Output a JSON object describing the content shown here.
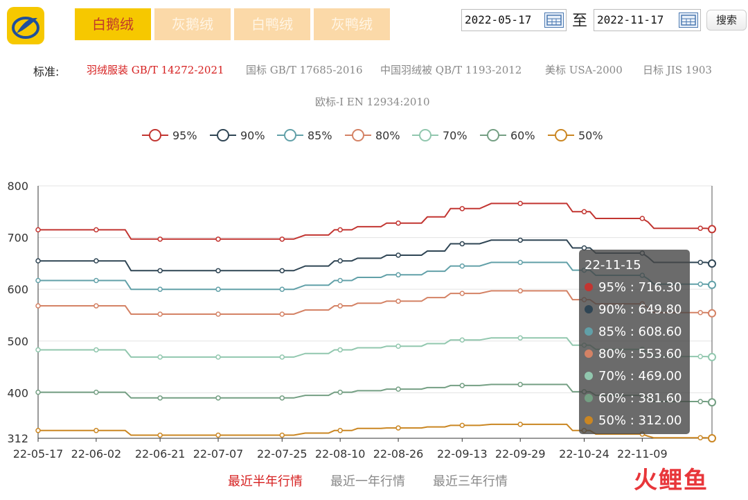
{
  "tabs": [
    {
      "label": "白鹅绒",
      "active": true
    },
    {
      "label": "灰鹅绒",
      "active": false
    },
    {
      "label": "白鸭绒",
      "active": false
    },
    {
      "label": "灰鸭绒",
      "active": false
    }
  ],
  "date_range": {
    "start": "2022-05-17",
    "to_label": "至",
    "end": "2022-11-17",
    "search_label": "搜索"
  },
  "standards": {
    "label": "标准:",
    "items": [
      {
        "label": "羽绒服装 GB/T 14272-2021",
        "active": true
      },
      {
        "label": "国标 GB/T 17685-2016",
        "active": false
      },
      {
        "label": "中国羽绒被 QB/T 1193-2012",
        "active": false
      },
      {
        "label": "美标 USA-2000",
        "active": false
      },
      {
        "label": "日标 JIS 1903",
        "active": false
      },
      {
        "label": "欧标-I EN 12934:2010",
        "active": false
      }
    ]
  },
  "period_links": [
    {
      "label": "最近半年行情",
      "active": true
    },
    {
      "label": "最近一年行情",
      "active": false
    },
    {
      "label": "最近三年行情",
      "active": false
    }
  ],
  "watermark": "火鲤鱼",
  "chart_data": {
    "type": "line",
    "ylim": [
      312,
      800
    ],
    "y_ticks": [
      312,
      400,
      500,
      600,
      700,
      800
    ],
    "x_tick_labels": [
      "22-05-17",
      "22-06-02",
      "22-06-21",
      "22-07-07",
      "22-07-25",
      "22-08-10",
      "22-08-26",
      "22-09-13",
      "22-09-29",
      "22-10-24",
      "22-11-09"
    ],
    "legend_position": "top-center",
    "x_count": 101,
    "series": [
      {
        "name": "95%",
        "color": "#c23531",
        "steps": [
          [
            0,
            715
          ],
          [
            15,
            715
          ],
          [
            16,
            697
          ],
          [
            44,
            697
          ],
          [
            46,
            705
          ],
          [
            50,
            705
          ],
          [
            51,
            715
          ],
          [
            54,
            715
          ],
          [
            55,
            721
          ],
          [
            59,
            721
          ],
          [
            60,
            728
          ],
          [
            66,
            728
          ],
          [
            67,
            740
          ],
          [
            70,
            740
          ],
          [
            71,
            756
          ],
          [
            76,
            756
          ],
          [
            78,
            766
          ],
          [
            91,
            766
          ],
          [
            92,
            750
          ],
          [
            95,
            750
          ],
          [
            96,
            737
          ],
          [
            104,
            737
          ],
          [
            105,
            730
          ],
          [
            106,
            718
          ],
          [
            115,
            718
          ],
          [
            116,
            716.3
          ]
        ]
      },
      {
        "name": "90%",
        "color": "#2f4554",
        "steps": [
          [
            0,
            655
          ],
          [
            15,
            655
          ],
          [
            16,
            636
          ],
          [
            44,
            636
          ],
          [
            46,
            645
          ],
          [
            50,
            645
          ],
          [
            51,
            655
          ],
          [
            54,
            655
          ],
          [
            55,
            660
          ],
          [
            59,
            660
          ],
          [
            60,
            666
          ],
          [
            66,
            666
          ],
          [
            67,
            674
          ],
          [
            70,
            674
          ],
          [
            71,
            688
          ],
          [
            76,
            688
          ],
          [
            78,
            695
          ],
          [
            91,
            695
          ],
          [
            92,
            680
          ],
          [
            95,
            680
          ],
          [
            96,
            670
          ],
          [
            104,
            670
          ],
          [
            105,
            662
          ],
          [
            106,
            652
          ],
          [
            115,
            652
          ],
          [
            116,
            649.8
          ]
        ]
      },
      {
        "name": "85%",
        "color": "#61a0a8",
        "steps": [
          [
            0,
            617
          ],
          [
            15,
            617
          ],
          [
            16,
            600
          ],
          [
            44,
            600
          ],
          [
            46,
            608
          ],
          [
            50,
            608
          ],
          [
            51,
            617
          ],
          [
            54,
            617
          ],
          [
            55,
            623
          ],
          [
            59,
            623
          ],
          [
            60,
            628
          ],
          [
            66,
            628
          ],
          [
            67,
            635
          ],
          [
            70,
            635
          ],
          [
            71,
            645
          ],
          [
            76,
            645
          ],
          [
            78,
            652
          ],
          [
            91,
            652
          ],
          [
            92,
            637
          ],
          [
            95,
            637
          ],
          [
            96,
            627
          ],
          [
            104,
            627
          ],
          [
            105,
            620
          ],
          [
            106,
            610
          ],
          [
            115,
            610
          ],
          [
            116,
            608.6
          ]
        ]
      },
      {
        "name": "80%",
        "color": "#d48265",
        "steps": [
          [
            0,
            568
          ],
          [
            15,
            568
          ],
          [
            16,
            552
          ],
          [
            44,
            552
          ],
          [
            46,
            560
          ],
          [
            50,
            560
          ],
          [
            51,
            568
          ],
          [
            54,
            568
          ],
          [
            55,
            573
          ],
          [
            59,
            573
          ],
          [
            60,
            577
          ],
          [
            66,
            577
          ],
          [
            67,
            584
          ],
          [
            70,
            584
          ],
          [
            71,
            592
          ],
          [
            76,
            592
          ],
          [
            78,
            597
          ],
          [
            91,
            597
          ],
          [
            92,
            580
          ],
          [
            95,
            580
          ],
          [
            96,
            572
          ],
          [
            104,
            572
          ],
          [
            105,
            565
          ],
          [
            106,
            555
          ],
          [
            115,
            555
          ],
          [
            116,
            553.6
          ]
        ]
      },
      {
        "name": "70%",
        "color": "#91c7ae",
        "steps": [
          [
            0,
            483
          ],
          [
            15,
            483
          ],
          [
            16,
            469
          ],
          [
            44,
            469
          ],
          [
            46,
            476
          ],
          [
            50,
            476
          ],
          [
            51,
            483
          ],
          [
            54,
            483
          ],
          [
            55,
            487
          ],
          [
            59,
            487
          ],
          [
            60,
            490
          ],
          [
            66,
            490
          ],
          [
            67,
            495
          ],
          [
            70,
            495
          ],
          [
            71,
            502
          ],
          [
            76,
            502
          ],
          [
            78,
            506
          ],
          [
            91,
            506
          ],
          [
            92,
            492
          ],
          [
            95,
            492
          ],
          [
            96,
            484
          ],
          [
            104,
            484
          ],
          [
            105,
            478
          ],
          [
            106,
            470
          ],
          [
            115,
            470
          ],
          [
            116,
            469
          ]
        ]
      },
      {
        "name": "60%",
        "color": "#749f83",
        "steps": [
          [
            0,
            401
          ],
          [
            15,
            401
          ],
          [
            16,
            390
          ],
          [
            44,
            390
          ],
          [
            46,
            395
          ],
          [
            50,
            395
          ],
          [
            51,
            401
          ],
          [
            54,
            401
          ],
          [
            55,
            404
          ],
          [
            59,
            404
          ],
          [
            60,
            407
          ],
          [
            66,
            407
          ],
          [
            67,
            410
          ],
          [
            70,
            410
          ],
          [
            71,
            414
          ],
          [
            76,
            414
          ],
          [
            78,
            416
          ],
          [
            91,
            416
          ],
          [
            92,
            402
          ],
          [
            95,
            402
          ],
          [
            96,
            395
          ],
          [
            104,
            395
          ],
          [
            105,
            390
          ],
          [
            106,
            383
          ],
          [
            115,
            383
          ],
          [
            116,
            381.6
          ]
        ]
      },
      {
        "name": "50%",
        "color": "#ca8622",
        "steps": [
          [
            0,
            327
          ],
          [
            15,
            327
          ],
          [
            16,
            318
          ],
          [
            44,
            318
          ],
          [
            46,
            322
          ],
          [
            50,
            322
          ],
          [
            51,
            327
          ],
          [
            54,
            327
          ],
          [
            55,
            331
          ],
          [
            59,
            331
          ],
          [
            60,
            332
          ],
          [
            66,
            332
          ],
          [
            67,
            334
          ],
          [
            70,
            334
          ],
          [
            71,
            337
          ],
          [
            76,
            337
          ],
          [
            78,
            339
          ],
          [
            91,
            339
          ],
          [
            92,
            327
          ],
          [
            95,
            327
          ],
          [
            96,
            320
          ],
          [
            104,
            320
          ],
          [
            105,
            316
          ],
          [
            106,
            313
          ],
          [
            115,
            313
          ],
          [
            116,
            312
          ]
        ]
      }
    ],
    "tooltip": {
      "date": "22-11-15",
      "rows": [
        "95% : 716.30",
        "90% : 649.80",
        "85% : 608.60",
        "80% : 553.60",
        "70% : 469.00",
        "60% : 381.60",
        "50% : 312.00"
      ]
    }
  }
}
